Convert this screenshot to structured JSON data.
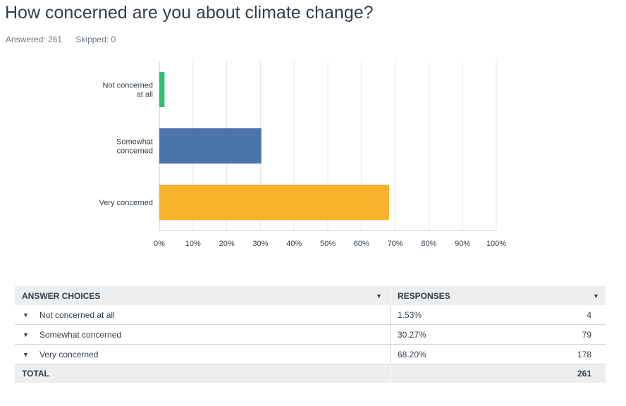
{
  "question": {
    "title": "How concerned are you about climate change?"
  },
  "stats": {
    "answered": "Answered: 261",
    "skipped": "Skipped: 0"
  },
  "chart_data": {
    "type": "bar",
    "orientation": "horizontal",
    "categories": [
      "Not concerned at all",
      "Somewhat concerned",
      "Very concerned"
    ],
    "category_label_lines": [
      [
        "Not concerned",
        "at all"
      ],
      [
        "Somewhat",
        "concerned"
      ],
      [
        "Very concerned"
      ]
    ],
    "values": [
      1.53,
      30.27,
      68.2
    ],
    "colors": [
      "#2dc26b",
      "#4a74aa",
      "#f7b32d"
    ],
    "xlim": [
      0,
      100
    ],
    "ticks": [
      "0%",
      "10%",
      "20%",
      "30%",
      "40%",
      "50%",
      "60%",
      "70%",
      "80%",
      "90%",
      "100%"
    ],
    "grid": true
  },
  "table": {
    "header": {
      "choices": "ANSWER CHOICES",
      "responses": "RESPONSES"
    },
    "rows": [
      {
        "label": "Not concerned at all",
        "percent": "1.53%",
        "count": "4"
      },
      {
        "label": "Somewhat concerned",
        "percent": "30.27%",
        "count": "79"
      },
      {
        "label": "Very concerned",
        "percent": "68.20%",
        "count": "178"
      }
    ],
    "total": {
      "label": "TOTAL",
      "count": "261"
    }
  },
  "icons": {
    "caret": "▼"
  }
}
